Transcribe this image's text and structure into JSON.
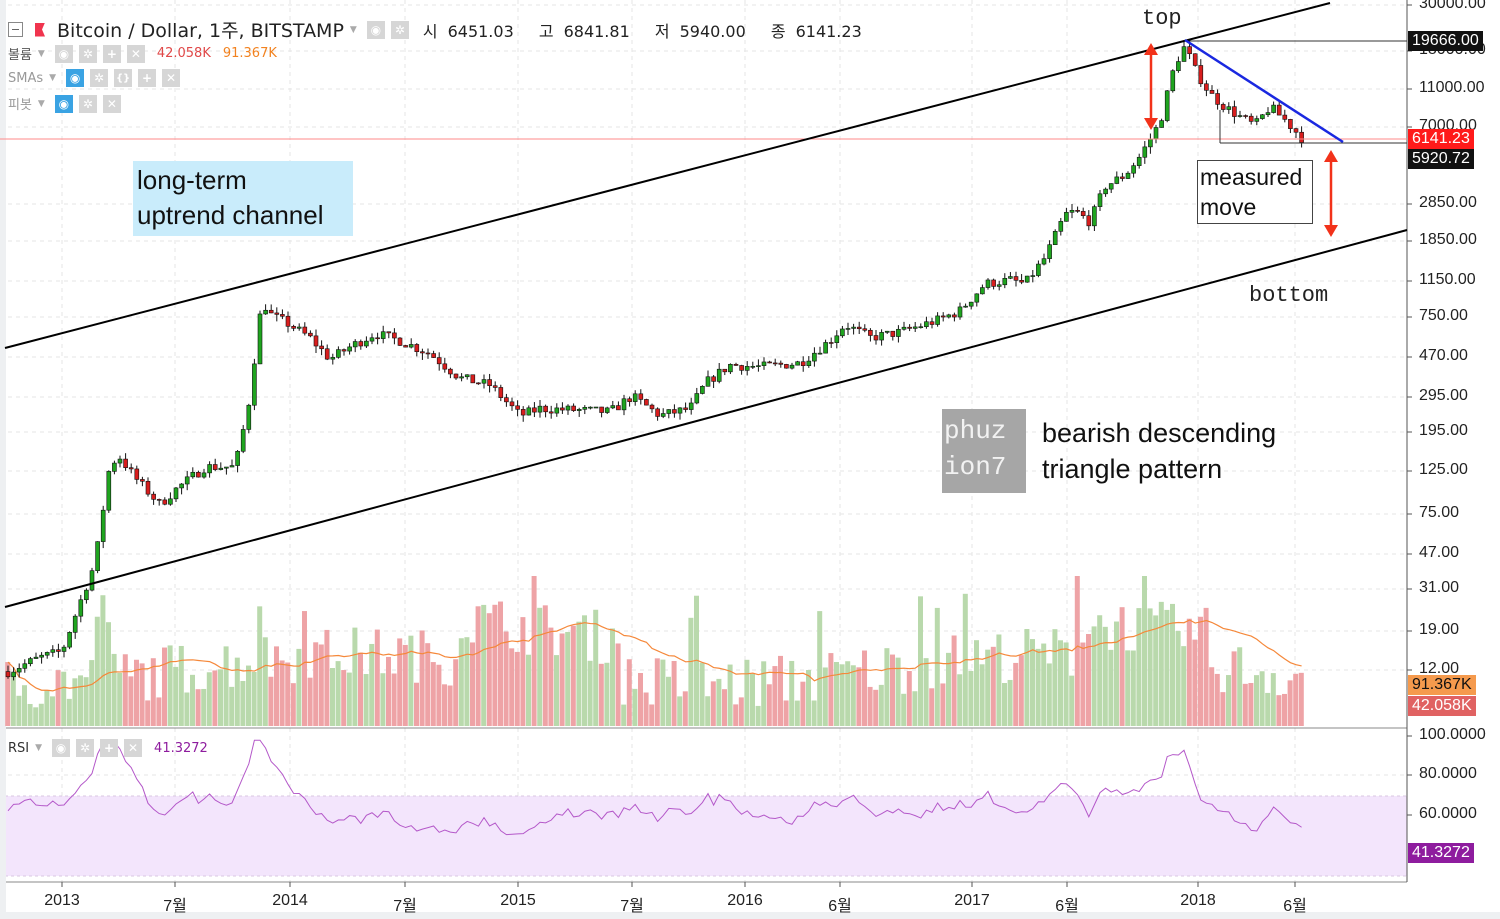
{
  "header": {
    "symbol_title": "Bitcoin / Dollar, 1주, BITSTAMP",
    "ohlc": {
      "open_label": "시",
      "open": "6451.03",
      "high_label": "고",
      "high": "6841.81",
      "low_label": "저",
      "low": "5940.00",
      "close_label": "종",
      "close": "6141.23"
    }
  },
  "indicators": {
    "volume": {
      "name": "볼륨",
      "value1": "42.058K",
      "value2": "91.367K",
      "color1": "#e04848",
      "color2": "#f2821f"
    },
    "smas": {
      "name": "SMAs"
    },
    "pivot": {
      "name": "피봇"
    },
    "rsi": {
      "name": "RSI",
      "value": "41.3272",
      "color": "#8e1c9e"
    }
  },
  "annotations": {
    "channel": "long-term\nuptrend channel",
    "channel_line1": "long-term",
    "channel_line2": "uptrend channel",
    "logo_line1": "phuz",
    "logo_line2": "ion7",
    "pattern_line1": "bearish descending",
    "pattern_line2": "triangle pattern",
    "top": "top",
    "bottom": "bottom",
    "measured_line1": "measured",
    "measured_line2": "move"
  },
  "price_axis": {
    "ticks": [
      "30000.00",
      "18000.00",
      "11000.00",
      "7000.00",
      "2850.00",
      "1850.00",
      "1150.00",
      "750.00",
      "470.00",
      "295.00",
      "195.00",
      "125.00",
      "75.00",
      "47.00",
      "31.00",
      "19.00",
      "12.00"
    ],
    "tags": {
      "high_line": "19666.00",
      "last_price": "6141.23",
      "support": "5920.72",
      "volume_sma": "91.367K",
      "volume": "42.058K"
    }
  },
  "rsi_axis": {
    "ticks": [
      "100.0000",
      "80.0000",
      "60.0000"
    ],
    "tag": "41.3272"
  },
  "time_axis": {
    "labels": [
      "2013",
      "7월",
      "2014",
      "7월",
      "2015",
      "7월",
      "2016",
      "6월",
      "2017",
      "6월",
      "2018",
      "6월"
    ]
  },
  "colors": {
    "up": "#1fa41f",
    "down": "#d81e1e",
    "vol_up": "#b9d9ac",
    "vol_down": "#eea3a6",
    "vol_sma": "#f5883a",
    "rsi_line": "#b458c9",
    "rsi_band": "#f3e5fc",
    "triangle": "#1a28e0",
    "arrow": "#f2321a",
    "last_price": "#ff1a1a"
  },
  "chart_data": {
    "type": "candlestick",
    "title": "Bitcoin / Dollar, 1주, BITSTAMP",
    "timeframe": "1 week",
    "yscale": "log",
    "ylim": [
      8,
      32000
    ],
    "x": [
      "2012-10",
      "2013-01",
      "2013-04",
      "2013-07",
      "2013-11",
      "2014-01",
      "2014-07",
      "2015-01",
      "2015-07",
      "2015-11",
      "2016-01",
      "2016-06",
      "2016-12",
      "2017-01",
      "2017-06",
      "2017-09",
      "2017-12",
      "2018-01",
      "2018-03",
      "2018-05",
      "2018-06"
    ],
    "close": [
      11,
      13,
      140,
      90,
      1000,
      800,
      600,
      220,
      280,
      380,
      420,
      680,
      800,
      950,
      2600,
      4200,
      19000,
      13000,
      8000,
      8500,
      6141
    ],
    "last_ohlc": {
      "open": 6451.03,
      "high": 6841.81,
      "low": 5940.0,
      "close": 6141.23
    },
    "horizontal_levels": {
      "all_time_high": 19666.0,
      "support": 5920.72,
      "last": 6141.23
    },
    "volume": {
      "last": "42.058K",
      "sma": "91.367K"
    },
    "rsi": {
      "last": 41.3272,
      "ylim": [
        20,
        100
      ],
      "band": [
        30,
        70
      ]
    },
    "annotations": [
      "long-term uptrend channel",
      "bearish descending triangle pattern",
      "top",
      "bottom",
      "measured move"
    ],
    "xlabel": "",
    "ylabel": "USD"
  }
}
